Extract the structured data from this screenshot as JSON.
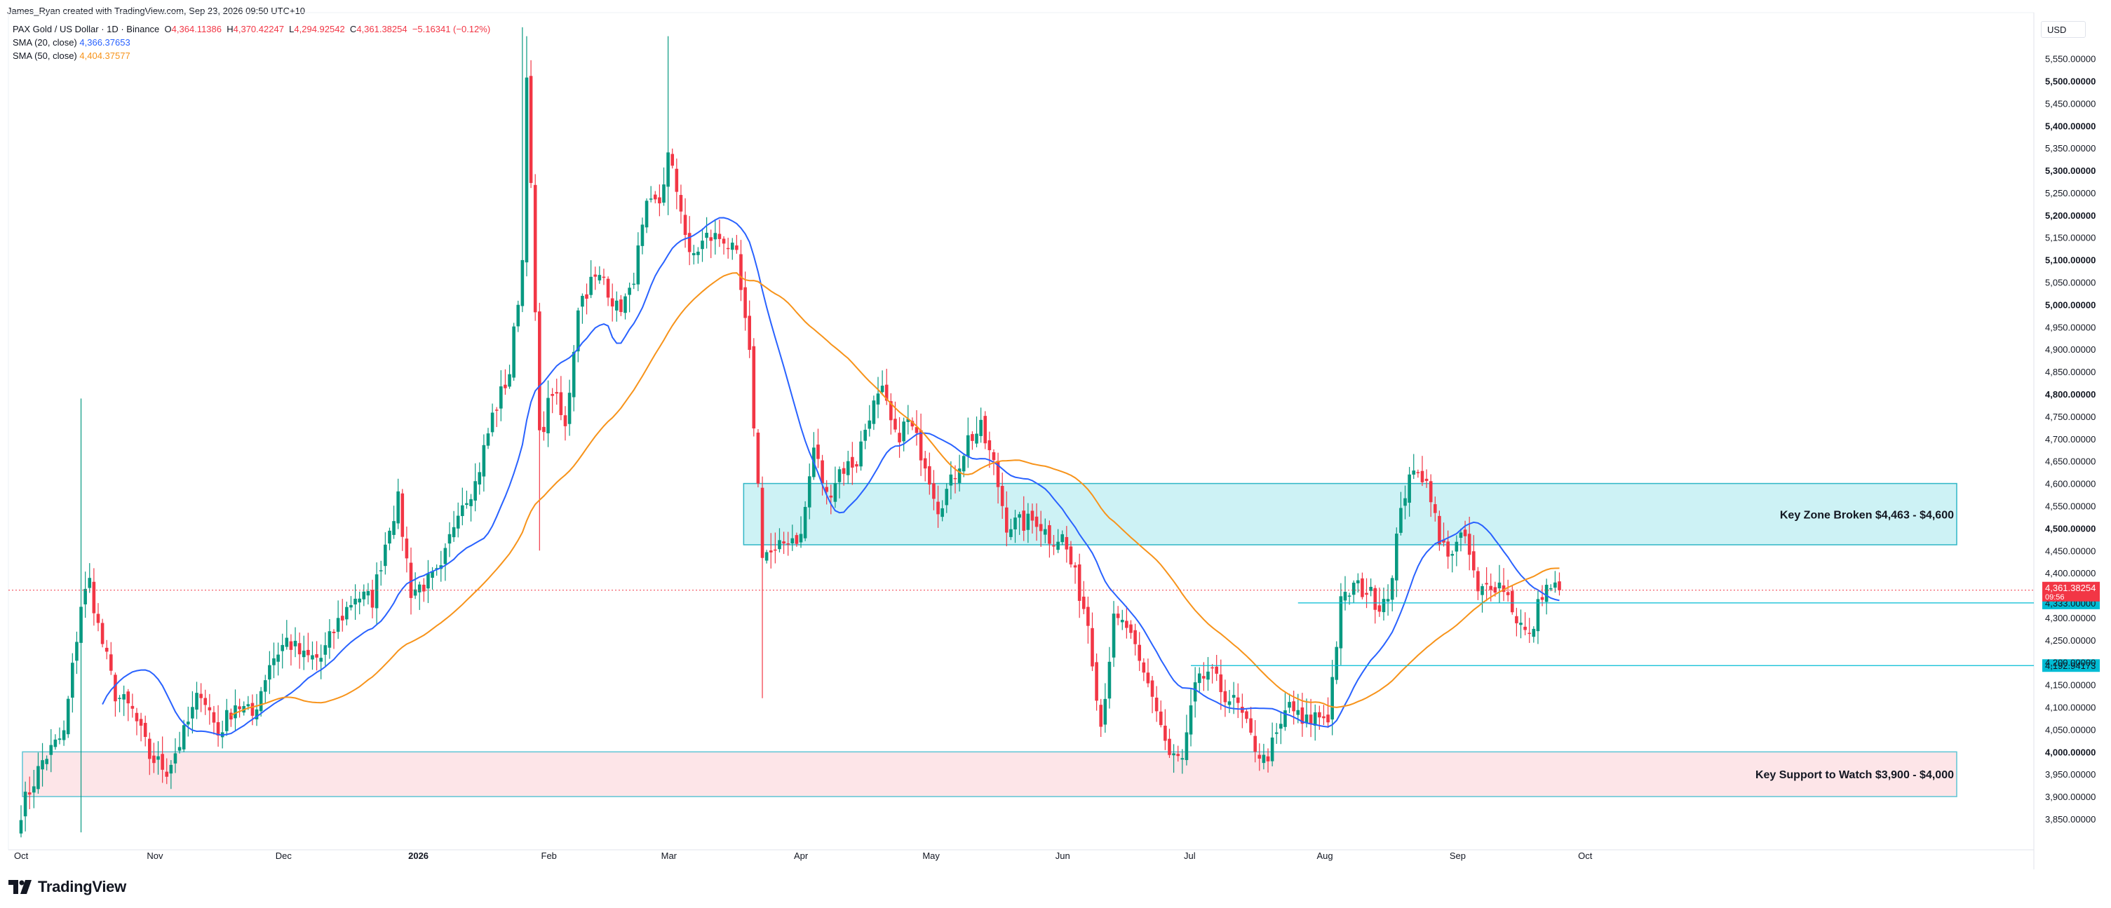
{
  "attribution": "James_Ryan created with TradingView.com, Sep 23, 2026 09:50 UTC+10",
  "legend": {
    "symbol": "PAX Gold / US Dollar · 1D · Binance",
    "ohlc": {
      "o_label": "O",
      "o": "4,364.11386",
      "h_label": "H",
      "h": "4,370.42247",
      "l_label": "L",
      "l": "4,294.92542",
      "c_label": "C",
      "c": "4,361.38254",
      "change": "−5.16341 (−0.12%)"
    },
    "sma20": {
      "label": "SMA (20, close)",
      "value": "4,366.37653"
    },
    "sma50": {
      "label": "SMA (50, close)",
      "value": "4,404.37577"
    }
  },
  "currency": "USD",
  "brand": "TradingView",
  "colors": {
    "up": "#089981",
    "down": "#f23645",
    "sma20": "#2962ff",
    "sma50": "#f7931a",
    "zone_fill": "#cdf2f5",
    "zone_border": "#2fb6c6",
    "support_fill": "#fde5e8",
    "price_tag": "#f23645",
    "level_tag": "#00bcd4"
  },
  "chart_data": {
    "type": "candlestick",
    "ylim": [
      3820,
      5620
    ],
    "y_ticks": [
      "3,850.00000",
      "3,900.00000",
      "3,950.00000",
      "4,000.00000",
      "4,050.00000",
      "4,100.00000",
      "4,150.00000",
      "4,200.00000",
      "4,250.00000",
      "4,300.00000",
      "4,350.00000",
      "4,400.00000",
      "4,450.00000",
      "4,500.00000",
      "4,550.00000",
      "4,600.00000",
      "4,650.00000",
      "4,700.00000",
      "4,750.00000",
      "4,800.00000",
      "4,850.00000",
      "4,900.00000",
      "4,950.00000",
      "5,000.00000",
      "5,050.00000",
      "5,100.00000",
      "5,150.00000",
      "5,200.00000",
      "5,250.00000",
      "5,300.00000",
      "5,350.00000",
      "5,400.00000",
      "5,450.00000",
      "5,500.00000",
      "5,550.00000"
    ],
    "bold_ticks": [
      "4,000.00000",
      "4,500.00000",
      "4,800.00000",
      "5,000.00000",
      "5,100.00000",
      "5,200.00000",
      "5,300.00000",
      "5,400.00000",
      "5,500.00000"
    ],
    "x_ticks": [
      {
        "label": "Oct",
        "day": 0
      },
      {
        "label": "Nov",
        "day": 31
      },
      {
        "label": "Dec",
        "day": 61
      },
      {
        "label": "2026",
        "day": 92,
        "bold": true
      },
      {
        "label": "Feb",
        "day": 123
      },
      {
        "label": "Mar",
        "day": 151
      },
      {
        "label": "Apr",
        "day": 182
      },
      {
        "label": "May",
        "day": 212
      },
      {
        "label": "Jun",
        "day": 243
      },
      {
        "label": "Jul",
        "day": 273
      },
      {
        "label": "Aug",
        "day": 304
      },
      {
        "label": "Sep",
        "day": 335
      },
      {
        "label": "Oct",
        "day": 365
      }
    ],
    "anchors": [
      [
        0,
        3870
      ],
      [
        5,
        3980
      ],
      [
        10,
        4040
      ],
      [
        14,
        4330
      ],
      [
        16,
        4380
      ],
      [
        18,
        4280
      ],
      [
        22,
        4130
      ],
      [
        26,
        4090
      ],
      [
        30,
        3990
      ],
      [
        34,
        3960
      ],
      [
        38,
        4040
      ],
      [
        42,
        4140
      ],
      [
        46,
        4040
      ],
      [
        50,
        4110
      ],
      [
        54,
        4080
      ],
      [
        58,
        4200
      ],
      [
        62,
        4250
      ],
      [
        66,
        4210
      ],
      [
        70,
        4210
      ],
      [
        74,
        4290
      ],
      [
        78,
        4350
      ],
      [
        82,
        4340
      ],
      [
        86,
        4510
      ],
      [
        88,
        4560
      ],
      [
        91,
        4360
      ],
      [
        95,
        4380
      ],
      [
        98,
        4400
      ],
      [
        102,
        4550
      ],
      [
        106,
        4600
      ],
      [
        110,
        4750
      ],
      [
        114,
        4850
      ],
      [
        117,
        5100
      ],
      [
        118,
        5530
      ],
      [
        121,
        4700
      ],
      [
        124,
        4810
      ],
      [
        127,
        4720
      ],
      [
        130,
        5000
      ],
      [
        133,
        5050
      ],
      [
        136,
        5060
      ],
      [
        139,
        4990
      ],
      [
        142,
        5020
      ],
      [
        146,
        5210
      ],
      [
        149,
        5230
      ],
      [
        151,
        5330
      ],
      [
        154,
        5220
      ],
      [
        156,
        5100
      ],
      [
        160,
        5150
      ],
      [
        164,
        5150
      ],
      [
        167,
        5100
      ],
      [
        170,
        4880
      ],
      [
        173,
        4450
      ],
      [
        176,
        4440
      ],
      [
        179,
        4480
      ],
      [
        182,
        4480
      ],
      [
        185,
        4680
      ],
      [
        188,
        4570
      ],
      [
        191,
        4630
      ],
      [
        195,
        4650
      ],
      [
        198,
        4760
      ],
      [
        201,
        4800
      ],
      [
        204,
        4700
      ],
      [
        207,
        4740
      ],
      [
        211,
        4650
      ],
      [
        214,
        4550
      ],
      [
        217,
        4600
      ],
      [
        221,
        4700
      ],
      [
        224,
        4720
      ],
      [
        227,
        4640
      ],
      [
        230,
        4510
      ],
      [
        234,
        4510
      ],
      [
        237,
        4520
      ],
      [
        240,
        4480
      ],
      [
        243,
        4480
      ],
      [
        246,
        4390
      ],
      [
        249,
        4290
      ],
      [
        252,
        4060
      ],
      [
        255,
        4290
      ],
      [
        258,
        4280
      ],
      [
        261,
        4190
      ],
      [
        264,
        4130
      ],
      [
        268,
        3990
      ],
      [
        271,
        3980
      ],
      [
        274,
        4140
      ],
      [
        277,
        4180
      ],
      [
        280,
        4140
      ],
      [
        284,
        4100
      ],
      [
        287,
        4030
      ],
      [
        290,
        3980
      ],
      [
        293,
        4030
      ],
      [
        296,
        4110
      ],
      [
        299,
        4060
      ],
      [
        302,
        4080
      ],
      [
        305,
        4080
      ],
      [
        308,
        4330
      ],
      [
        311,
        4370
      ],
      [
        314,
        4360
      ],
      [
        317,
        4330
      ],
      [
        320,
        4380
      ],
      [
        322,
        4560
      ],
      [
        326,
        4640
      ],
      [
        329,
        4580
      ],
      [
        331,
        4460
      ],
      [
        334,
        4450
      ],
      [
        337,
        4480
      ],
      [
        340,
        4350
      ],
      [
        343,
        4380
      ],
      [
        346,
        4370
      ],
      [
        349,
        4300
      ],
      [
        352,
        4250
      ],
      [
        355,
        4360
      ],
      [
        357,
        4370
      ],
      [
        359,
        4361
      ]
    ],
    "sma20_anchors": [
      [
        36,
        3830
      ],
      [
        45,
        4050
      ],
      [
        52,
        4130
      ],
      [
        58,
        4140
      ],
      [
        66,
        4040
      ],
      [
        78,
        4090
      ],
      [
        95,
        4200
      ],
      [
        110,
        4300
      ],
      [
        135,
        4420
      ],
      [
        150,
        4560
      ],
      [
        165,
        4750
      ],
      [
        180,
        4960
      ],
      [
        193,
        5030
      ],
      [
        205,
        5000
      ],
      [
        216,
        5160
      ],
      [
        227,
        5200
      ],
      [
        235,
        5180
      ],
      [
        245,
        5020
      ],
      [
        255,
        4850
      ],
      [
        270,
        4620
      ],
      [
        280,
        4580
      ],
      [
        292,
        4590
      ],
      [
        300,
        4680
      ],
      [
        312,
        4720
      ],
      [
        324,
        4720
      ],
      [
        335,
        4640
      ],
      [
        347,
        4590
      ],
      [
        358,
        4530
      ],
      [
        368,
        4480
      ],
      [
        380,
        4400
      ],
      [
        392,
        4250
      ],
      [
        405,
        4160
      ],
      [
        420,
        4100
      ],
      [
        440,
        4070
      ],
      [
        455,
        4060
      ],
      [
        480,
        4080
      ],
      [
        500,
        4130
      ],
      [
        520,
        4330
      ],
      [
        532,
        4500
      ],
      [
        540,
        4500
      ],
      [
        552,
        4430
      ],
      [
        564,
        4370
      ]
    ],
    "sma50_anchors": [
      [
        2,
        3830
      ],
      [
        4,
        3850
      ],
      [
        6,
        3860
      ],
      [
        8,
        3870
      ],
      [
        9,
        3880
      ],
      [
        10,
        3890
      ],
      [
        12,
        3910
      ],
      [
        14,
        3925
      ],
      [
        16,
        3940
      ],
      [
        18,
        3950
      ],
      [
        20,
        3960
      ],
      [
        22,
        3960
      ]
    ],
    "zones": [
      {
        "id": "key-zone",
        "label": "Key Zone Broken $4,463 - $4,600",
        "low": 4463,
        "high": 4600,
        "from_day": 167,
        "to_day": 370
      },
      {
        "id": "key-support",
        "label": "Key Support to Watch $3,900 - $4,000",
        "low": 3900,
        "high": 4000,
        "from_day": 0,
        "to_day": 370
      }
    ],
    "levels": [
      {
        "id": "level-4333",
        "value": 4333,
        "from_day": 298,
        "label": "4,333.00000"
      },
      {
        "id": "level-4192",
        "value": 4192.9417,
        "from_day": 273,
        "label": "4,192.94173"
      }
    ],
    "last_price": {
      "value": 4361.38254,
      "label": "4,361.38254",
      "countdown": "09:56"
    }
  }
}
